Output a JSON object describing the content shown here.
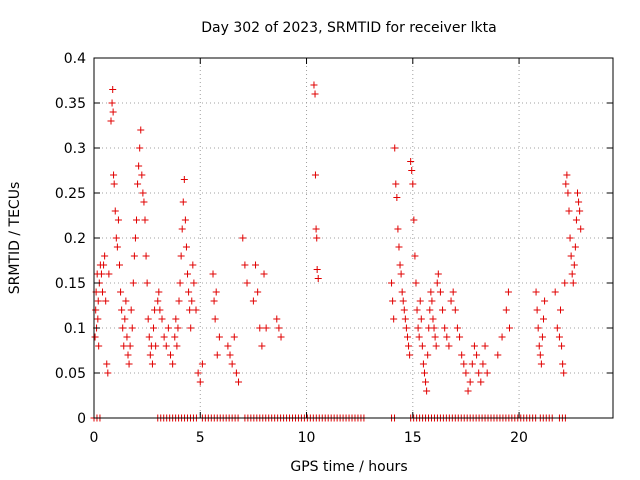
{
  "chart_data": {
    "type": "scatter",
    "title": "Day 302 of 2023, SRMTID for receiver lkta",
    "xlabel": "GPS time / hours",
    "ylabel": "SRMTID / TECUs",
    "xlim": [
      0,
      24.42
    ],
    "ylim": [
      0,
      0.4
    ],
    "xticks": [
      0,
      5,
      10,
      15,
      20
    ],
    "yticks": [
      0,
      0.05,
      0.1,
      0.15,
      0.2,
      0.25,
      0.3,
      0.35,
      0.4
    ],
    "ytick_labels": [
      "0",
      "0.05",
      "0.1",
      "0.15",
      "0.2",
      "0.25",
      "0.3",
      "0.35",
      "0.4"
    ],
    "grid": true,
    "marker": "+",
    "colors": {
      "series": "#e00000",
      "grid": "#a0a0a0",
      "axis": "#000000"
    },
    "series": [
      {
        "name": "SRMTID",
        "points": [
          [
            0.05,
            0.09
          ],
          [
            0.08,
            0.12
          ],
          [
            0.1,
            0.14
          ],
          [
            0.12,
            0.1
          ],
          [
            0.15,
            0.16
          ],
          [
            0.18,
            0.11
          ],
          [
            0.2,
            0.13
          ],
          [
            0.22,
            0.08
          ],
          [
            0.25,
            0.15
          ],
          [
            0.3,
            0.17
          ],
          [
            0.35,
            0.16
          ],
          [
            0.4,
            0.14
          ],
          [
            0.45,
            0.17
          ],
          [
            0.5,
            0.18
          ],
          [
            0.55,
            0.13
          ],
          [
            0.6,
            0.06
          ],
          [
            0.65,
            0.05
          ],
          [
            0.7,
            0.16
          ],
          [
            0.8,
            0.33
          ],
          [
            0.85,
            0.35
          ],
          [
            0.88,
            0.365
          ],
          [
            0.9,
            0.34
          ],
          [
            0.92,
            0.27
          ],
          [
            0.95,
            0.26
          ],
          [
            1.0,
            0.23
          ],
          [
            1.05,
            0.2
          ],
          [
            1.1,
            0.19
          ],
          [
            1.15,
            0.22
          ],
          [
            1.2,
            0.17
          ],
          [
            1.25,
            0.14
          ],
          [
            1.3,
            0.12
          ],
          [
            1.35,
            0.1
          ],
          [
            1.4,
            0.08
          ],
          [
            1.45,
            0.11
          ],
          [
            1.5,
            0.13
          ],
          [
            1.55,
            0.09
          ],
          [
            1.6,
            0.07
          ],
          [
            1.65,
            0.06
          ],
          [
            1.7,
            0.08
          ],
          [
            1.75,
            0.12
          ],
          [
            1.8,
            0.1
          ],
          [
            1.85,
            0.15
          ],
          [
            1.9,
            0.18
          ],
          [
            1.95,
            0.2
          ],
          [
            2.0,
            0.22
          ],
          [
            2.05,
            0.26
          ],
          [
            2.1,
            0.28
          ],
          [
            2.15,
            0.3
          ],
          [
            2.2,
            0.32
          ],
          [
            2.25,
            0.27
          ],
          [
            2.3,
            0.25
          ],
          [
            2.35,
            0.24
          ],
          [
            2.4,
            0.22
          ],
          [
            2.45,
            0.18
          ],
          [
            2.5,
            0.15
          ],
          [
            2.55,
            0.11
          ],
          [
            2.6,
            0.09
          ],
          [
            2.65,
            0.07
          ],
          [
            2.7,
            0.08
          ],
          [
            2.75,
            0.06
          ],
          [
            2.8,
            0.1
          ],
          [
            2.85,
            0.12
          ],
          [
            2.9,
            0.08
          ],
          [
            3.0,
            0.13
          ],
          [
            3.05,
            0.14
          ],
          [
            3.1,
            0.12
          ],
          [
            3.2,
            0.11
          ],
          [
            3.3,
            0.09
          ],
          [
            3.4,
            0.08
          ],
          [
            3.5,
            0.1
          ],
          [
            3.6,
            0.07
          ],
          [
            3.7,
            0.06
          ],
          [
            3.8,
            0.09
          ],
          [
            3.85,
            0.11
          ],
          [
            3.9,
            0.08
          ],
          [
            3.95,
            0.1
          ],
          [
            4.0,
            0.13
          ],
          [
            4.05,
            0.15
          ],
          [
            4.1,
            0.18
          ],
          [
            4.15,
            0.21
          ],
          [
            4.2,
            0.24
          ],
          [
            4.25,
            0.265
          ],
          [
            4.3,
            0.22
          ],
          [
            4.35,
            0.19
          ],
          [
            4.4,
            0.16
          ],
          [
            4.45,
            0.14
          ],
          [
            4.5,
            0.12
          ],
          [
            4.55,
            0.1
          ],
          [
            4.6,
            0.13
          ],
          [
            4.65,
            0.17
          ],
          [
            4.7,
            0.15
          ],
          [
            4.8,
            0.12
          ],
          [
            4.9,
            0.05
          ],
          [
            5.0,
            0.04
          ],
          [
            5.1,
            0.06
          ],
          [
            5.6,
            0.16
          ],
          [
            5.65,
            0.13
          ],
          [
            5.7,
            0.11
          ],
          [
            5.75,
            0.14
          ],
          [
            5.8,
            0.07
          ],
          [
            5.9,
            0.09
          ],
          [
            6.3,
            0.08
          ],
          [
            6.4,
            0.07
          ],
          [
            6.5,
            0.06
          ],
          [
            6.6,
            0.09
          ],
          [
            6.7,
            0.05
          ],
          [
            6.8,
            0.04
          ],
          [
            7.0,
            0.2
          ],
          [
            7.1,
            0.17
          ],
          [
            7.2,
            0.15
          ],
          [
            7.5,
            0.13
          ],
          [
            7.6,
            0.17
          ],
          [
            7.7,
            0.14
          ],
          [
            7.8,
            0.1
          ],
          [
            7.9,
            0.08
          ],
          [
            8.0,
            0.16
          ],
          [
            8.1,
            0.1
          ],
          [
            8.6,
            0.11
          ],
          [
            8.7,
            0.1
          ],
          [
            8.8,
            0.09
          ],
          [
            10.35,
            0.37
          ],
          [
            10.4,
            0.36
          ],
          [
            10.42,
            0.27
          ],
          [
            10.45,
            0.21
          ],
          [
            10.48,
            0.2
          ],
          [
            10.5,
            0.165
          ],
          [
            10.55,
            0.155
          ],
          [
            14.0,
            0.15
          ],
          [
            14.05,
            0.13
          ],
          [
            14.1,
            0.11
          ],
          [
            14.15,
            0.3
          ],
          [
            14.2,
            0.26
          ],
          [
            14.25,
            0.245
          ],
          [
            14.3,
            0.21
          ],
          [
            14.35,
            0.19
          ],
          [
            14.4,
            0.17
          ],
          [
            14.45,
            0.16
          ],
          [
            14.5,
            0.14
          ],
          [
            14.55,
            0.13
          ],
          [
            14.6,
            0.12
          ],
          [
            14.65,
            0.11
          ],
          [
            14.7,
            0.1
          ],
          [
            14.75,
            0.09
          ],
          [
            14.8,
            0.08
          ],
          [
            14.85,
            0.07
          ],
          [
            14.9,
            0.285
          ],
          [
            14.95,
            0.275
          ],
          [
            15.0,
            0.26
          ],
          [
            15.05,
            0.22
          ],
          [
            15.1,
            0.18
          ],
          [
            15.15,
            0.15
          ],
          [
            15.2,
            0.12
          ],
          [
            15.25,
            0.1
          ],
          [
            15.3,
            0.09
          ],
          [
            15.35,
            0.13
          ],
          [
            15.4,
            0.11
          ],
          [
            15.45,
            0.08
          ],
          [
            15.5,
            0.06
          ],
          [
            15.55,
            0.05
          ],
          [
            15.6,
            0.04
          ],
          [
            15.65,
            0.03
          ],
          [
            15.7,
            0.07
          ],
          [
            15.75,
            0.1
          ],
          [
            15.8,
            0.12
          ],
          [
            15.85,
            0.14
          ],
          [
            15.9,
            0.13
          ],
          [
            15.95,
            0.11
          ],
          [
            16.0,
            0.1
          ],
          [
            16.05,
            0.09
          ],
          [
            16.1,
            0.08
          ],
          [
            16.15,
            0.15
          ],
          [
            16.2,
            0.16
          ],
          [
            16.3,
            0.14
          ],
          [
            16.4,
            0.12
          ],
          [
            16.5,
            0.1
          ],
          [
            16.6,
            0.09
          ],
          [
            16.7,
            0.08
          ],
          [
            16.8,
            0.13
          ],
          [
            16.9,
            0.14
          ],
          [
            17.0,
            0.12
          ],
          [
            17.1,
            0.1
          ],
          [
            17.2,
            0.09
          ],
          [
            17.3,
            0.07
          ],
          [
            17.4,
            0.06
          ],
          [
            17.5,
            0.05
          ],
          [
            17.6,
            0.03
          ],
          [
            17.7,
            0.04
          ],
          [
            17.8,
            0.06
          ],
          [
            17.9,
            0.08
          ],
          [
            18.0,
            0.07
          ],
          [
            18.1,
            0.05
          ],
          [
            18.2,
            0.04
          ],
          [
            18.3,
            0.06
          ],
          [
            18.4,
            0.08
          ],
          [
            18.5,
            0.05
          ],
          [
            19.0,
            0.07
          ],
          [
            19.2,
            0.09
          ],
          [
            19.4,
            0.12
          ],
          [
            19.5,
            0.14
          ],
          [
            19.55,
            0.1
          ],
          [
            20.8,
            0.14
          ],
          [
            20.85,
            0.12
          ],
          [
            20.9,
            0.1
          ],
          [
            20.95,
            0.08
          ],
          [
            21.0,
            0.07
          ],
          [
            21.05,
            0.06
          ],
          [
            21.1,
            0.09
          ],
          [
            21.15,
            0.11
          ],
          [
            21.2,
            0.13
          ],
          [
            21.7,
            0.14
          ],
          [
            21.8,
            0.1
          ],
          [
            21.9,
            0.09
          ],
          [
            21.95,
            0.12
          ],
          [
            22.0,
            0.08
          ],
          [
            22.05,
            0.06
          ],
          [
            22.1,
            0.05
          ],
          [
            22.15,
            0.15
          ],
          [
            22.2,
            0.26
          ],
          [
            22.25,
            0.27
          ],
          [
            22.3,
            0.25
          ],
          [
            22.35,
            0.23
          ],
          [
            22.4,
            0.2
          ],
          [
            22.45,
            0.18
          ],
          [
            22.5,
            0.16
          ],
          [
            22.55,
            0.15
          ],
          [
            22.6,
            0.17
          ],
          [
            22.65,
            0.19
          ],
          [
            22.7,
            0.22
          ],
          [
            22.75,
            0.25
          ],
          [
            22.8,
            0.24
          ],
          [
            22.85,
            0.23
          ],
          [
            22.9,
            0.21
          ]
        ],
        "zero_ranges": [
          [
            0.0,
            0.4
          ],
          [
            3.0,
            4.9
          ],
          [
            5.1,
            6.9
          ],
          [
            7.1,
            12.8
          ],
          [
            14.0,
            14.25
          ],
          [
            14.9,
            20.9
          ],
          [
            21.0,
            21.6
          ],
          [
            21.9,
            22.3
          ]
        ],
        "zero_step": 0.14
      }
    ]
  }
}
